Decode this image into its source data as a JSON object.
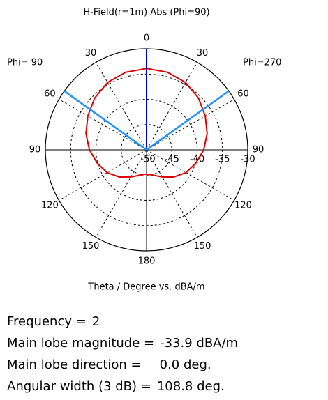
{
  "chart_data": {
    "type": "polar",
    "title": "H-Field(r=1m) Abs (Phi=90)",
    "axis_label": "Theta / Degree vs. dBA/m",
    "left_label": "Phi= 90",
    "right_label": "Phi=270",
    "rlim": [
      -50,
      -30
    ],
    "rticks": [
      -50,
      -45,
      -40,
      -35,
      -30
    ],
    "thetaticks": [
      0,
      30,
      60,
      90,
      120,
      150,
      180
    ],
    "series": [
      {
        "color": "#e00000",
        "theta": [
          0,
          15,
          30,
          45,
          60,
          75,
          90,
          105,
          120,
          135,
          150,
          165,
          180,
          195,
          210,
          225,
          240,
          255,
          270,
          285,
          300,
          315,
          330,
          345
        ],
        "values": [
          -33.9,
          -34.1,
          -34.6,
          -35.5,
          -36.6,
          -37.6,
          -38.7,
          -39.9,
          -41.0,
          -42.4,
          -43.8,
          -44.8,
          -45.2,
          -44.8,
          -43.8,
          -42.4,
          -41.0,
          -39.9,
          -38.7,
          -37.6,
          -36.6,
          -35.5,
          -34.6,
          -34.1
        ]
      }
    ],
    "annotations": [
      {
        "label": "Frequency =",
        "value": 2
      },
      {
        "label": "Main lobe magnitude =",
        "value": -33.9,
        "value_label": "-33.9 dBA/m"
      },
      {
        "label": "Main lobe direction =",
        "value": 0.0,
        "value_label": "0.0 deg.",
        "color": "#0000cc"
      },
      {
        "label": "Angular width (3 dB) =",
        "value": 108.8,
        "value_label": "108.8 deg.",
        "color": "#1e90ff"
      }
    ]
  }
}
